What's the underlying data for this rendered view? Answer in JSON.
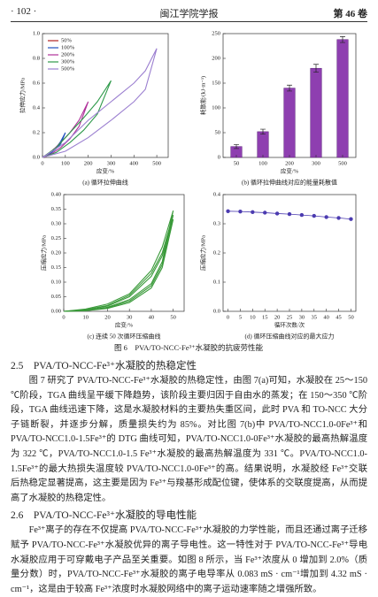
{
  "header": {
    "page": "· 102 ·",
    "journal": "闽江学院学报",
    "volume": "第 46 卷"
  },
  "chart_data": [
    {
      "type": "line",
      "caption": "(a) 循环拉伸曲线",
      "xlabel": "应变/%",
      "ylabel": "拉伸应力/MPa",
      "xlim": [
        0,
        550
      ],
      "xticks": [
        0,
        100,
        200,
        300,
        400,
        500
      ],
      "ylim": [
        0,
        1.0
      ],
      "yticks": [
        {
          "value": 0,
          "label": "0.0"
        },
        0.2,
        0.4,
        0.6,
        0.8,
        {
          "value": 1,
          "label": "1.0"
        }
      ],
      "legend": "upper left",
      "series": [
        {
          "name": "50%",
          "color": "#b22222",
          "x": [
            0,
            10,
            20,
            30,
            40,
            50,
            40,
            30,
            20,
            10,
            0
          ],
          "values": [
            0,
            0.01,
            0.02,
            0.035,
            0.05,
            0.07,
            0.04,
            0.025,
            0.012,
            0.004,
            0
          ]
        },
        {
          "name": "100%",
          "color": "#1f4fbf",
          "x": [
            0,
            20,
            40,
            60,
            80,
            100,
            80,
            60,
            40,
            20,
            0
          ],
          "values": [
            0,
            0.02,
            0.05,
            0.08,
            0.13,
            0.2,
            0.11,
            0.07,
            0.04,
            0.015,
            0
          ]
        },
        {
          "name": "200%",
          "color": "#b0309a",
          "x": [
            0,
            40,
            80,
            120,
            160,
            200,
            160,
            120,
            80,
            40,
            0
          ],
          "values": [
            0,
            0.05,
            0.12,
            0.2,
            0.3,
            0.45,
            0.25,
            0.15,
            0.08,
            0.03,
            0
          ]
        },
        {
          "name": "300%",
          "color": "#2e9a4a",
          "x": [
            0,
            60,
            120,
            180,
            240,
            300,
            240,
            180,
            120,
            60,
            0
          ],
          "values": [
            0,
            0.08,
            0.2,
            0.32,
            0.45,
            0.62,
            0.35,
            0.22,
            0.12,
            0.04,
            0
          ]
        },
        {
          "name": "500%",
          "color": "#9b7fd0",
          "x": [
            0,
            100,
            200,
            300,
            400,
            450,
            500,
            450,
            400,
            300,
            200,
            100,
            0
          ],
          "values": [
            0,
            0.12,
            0.3,
            0.45,
            0.6,
            0.7,
            0.88,
            0.55,
            0.45,
            0.3,
            0.16,
            0.05,
            0
          ]
        }
      ]
    },
    {
      "type": "bar",
      "caption": "(b) 循环拉伸曲线对应的能量耗散值",
      "xlabel": "应变/%",
      "ylabel": "耗散能/(kJ·m⁻³)",
      "categories": [
        "50",
        "100",
        "200",
        "300",
        "500"
      ],
      "values": [
        22,
        52,
        140,
        180,
        238
      ],
      "errors": [
        4,
        5,
        6,
        8,
        6
      ],
      "color": "#8e3fb0",
      "ylim": [
        0,
        250
      ],
      "yticks": [
        0,
        50,
        100,
        150,
        200,
        250
      ]
    },
    {
      "type": "line",
      "caption": "(c) 连续 50 次循环压缩曲线",
      "xlabel": "应变/%",
      "ylabel": "压缩应力/MPa",
      "xlim": [
        0,
        55
      ],
      "xticks": [
        0,
        10,
        20,
        30,
        40,
        50
      ],
      "ylim": [
        0,
        0.4
      ],
      "yticks": [
        {
          "value": 0,
          "label": "0.00"
        },
        0.05,
        {
          "value": 0.1,
          "label": "0.10"
        },
        0.15,
        {
          "value": 0.2,
          "label": "0.20"
        },
        0.25,
        {
          "value": 0.3,
          "label": "0.30"
        },
        0.35,
        {
          "value": 0.4,
          "label": "0.40"
        }
      ],
      "series": [
        {
          "color": "#3a9a3a",
          "x": [
            0,
            10,
            20,
            30,
            40,
            45,
            50,
            45,
            40,
            30,
            20,
            10,
            0
          ],
          "values": [
            0,
            0.008,
            0.025,
            0.06,
            0.14,
            0.22,
            0.345,
            0.17,
            0.095,
            0.04,
            0.014,
            0.003,
            0
          ]
        },
        {
          "color": "#3a9a3a",
          "x": [
            0,
            10,
            20,
            30,
            40,
            45,
            50,
            45,
            40,
            30,
            20,
            10,
            0
          ],
          "values": [
            0,
            0.006,
            0.02,
            0.055,
            0.13,
            0.2,
            0.33,
            0.16,
            0.088,
            0.035,
            0.012,
            0.002,
            0
          ]
        },
        {
          "color": "#3a9a3a",
          "x": [
            0,
            10,
            20,
            30,
            40,
            45,
            50,
            45,
            40,
            30,
            20,
            10,
            0
          ],
          "values": [
            0,
            0.005,
            0.018,
            0.05,
            0.12,
            0.19,
            0.315,
            0.15,
            0.08,
            0.03,
            0.01,
            0.002,
            0
          ]
        }
      ]
    },
    {
      "type": "line",
      "markers": true,
      "caption": "(d) 循环压缩曲线对应的最大应力",
      "xlabel": "循环次数/次",
      "ylabel": "压缩应力/MPa",
      "xlim": [
        -2,
        52
      ],
      "xticks": [
        0,
        5,
        10,
        15,
        20,
        25,
        30,
        35,
        40,
        45,
        50
      ],
      "ylim": [
        0,
        0.4
      ],
      "yticks": [
        {
          "value": 0,
          "label": "0.0"
        },
        0.1,
        0.2,
        0.3,
        0.4
      ],
      "series": [
        {
          "color": "#4b3bb0",
          "x": [
            0,
            5,
            10,
            15,
            20,
            25,
            30,
            35,
            40,
            45,
            50
          ],
          "values": [
            0.343,
            0.342,
            0.34,
            0.338,
            0.335,
            0.333,
            0.33,
            0.327,
            0.323,
            0.32,
            0.316
          ]
        }
      ]
    }
  ],
  "figure_caption": "图 6　PVA/TO-NCC-Fe³⁺水凝胶的抗疲劳性能",
  "sections": [
    {
      "heading": "2.5　PVA/TO-NCC-Fe³⁺水凝胶的热稳定性",
      "paragraph": "图 7 研究了 PVA/TO-NCC-Fe³⁺水凝胶的热稳定性，由图 7(a)可知，水凝胶在 25～150 ℃阶段，TGA 曲线呈平缓下降趋势，该阶段主要归因于自由水的蒸发；在 150～350 ℃阶段，TGA 曲线迅速下降，这是水凝胶材料的主要热失重区间，此时 PVA 和 TO-NCC 大分子链断裂，并逐步分解，质量损失约为 85%。对比图 7(b)中 PVA/TO-NCC1.0-0Fe³⁺和 PVA/TO-NCC1.0-1.5Fe³⁺的 DTG 曲线可知，PVA/TO-NCC1.0-0Fe³⁺水凝胶的最高热解温度为 322 ℃，PVA/TO-NCC1.0-1.5 Fe³⁺水凝胶的最高热解温度为 331 ℃。PVA/TO-NCC1.0-1.5Fe³⁺的最大热损失温度较 PVA/TO-NCC1.0-0Fe³⁺的高。结果说明，水凝胶经 Fe³⁺交联后热稳定显著提高，这主要是因为 Fe³⁺与羧基形成配位键，使体系的交联度提高，从而提高了水凝胶的热稳定性。"
    },
    {
      "heading": "2.6　PVA/TO-NCC-Fe³⁺水凝胶的导电性能",
      "paragraph": "Fe³⁺离子的存在不仅提高 PVA/TO-NCC-Fe³⁺水凝胶的力学性能，而且还通过离子迁移赋予 PVA/TO-NCC-Fe³⁺水凝胶优异的离子导电性。这一特性对于 PVA/TO-NCC-Fe³⁺导电水凝胶应用于可穿戴电子产品至关重要。如图 8 所示，当 Fe³⁺浓度从 0 增加到 2.0%（质量分数）时，PVA/TO-NCC-Fe³⁺水凝胶的离子电导率从 0.083 mS · cm⁻¹增加到 4.32 mS · cm⁻¹，这是由于较高 Fe³⁺浓度时水凝胶网络中的离子运动速率随之增强所致。"
    }
  ]
}
